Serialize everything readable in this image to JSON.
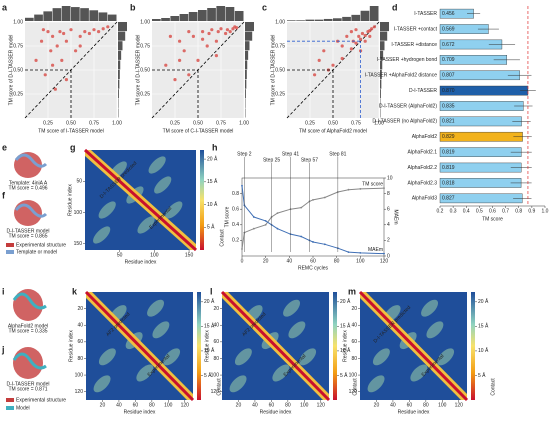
{
  "panel_labels": [
    "a",
    "b",
    "c",
    "d",
    "e",
    "f",
    "g",
    "h",
    "i",
    "j",
    "k",
    "l",
    "m"
  ],
  "structures": {
    "e": [
      "Template: 4iniA A",
      "TM score = 0.496"
    ],
    "f": [
      "D-I-TASSER model",
      "TM score = 0.865"
    ],
    "legend_ef": [
      "Experimental structure",
      "Template or model"
    ],
    "i": [
      "AlphaFold2 model",
      "TM score = 0.335"
    ],
    "j": [
      "D-I-TASSER model",
      "TM score = 0.871"
    ],
    "legend_ij": [
      "Experimental structure",
      "Model"
    ]
  },
  "chart_data": [
    {
      "type": "scatter",
      "xlabel": "TM score of I-TASSER model",
      "ylabel": "TM score of D-I-TASSER model",
      "color": "#d9534f",
      "x": [
        0.12,
        0.18,
        0.22,
        0.25,
        0.28,
        0.3,
        0.33,
        0.35,
        0.38,
        0.4,
        0.42,
        0.45,
        0.5,
        0.55,
        0.6,
        0.65,
        0.7,
        0.75,
        0.8,
        0.85,
        0.9,
        0.3,
        0.2,
        0.45,
        0.6
      ],
      "y": [
        0.6,
        0.8,
        0.45,
        0.9,
        0.7,
        0.85,
        0.3,
        0.75,
        0.9,
        0.6,
        0.88,
        0.8,
        0.92,
        0.7,
        0.85,
        0.9,
        0.88,
        0.92,
        0.9,
        0.93,
        0.95,
        0.55,
        0.92,
        0.4,
        0.75
      ],
      "x_hist": [
        3,
        6,
        9,
        12,
        14,
        13,
        12,
        10,
        8,
        6
      ],
      "y_hist": [
        1,
        1,
        2,
        3,
        4,
        5,
        7,
        10,
        16,
        20
      ],
      "xlim": [
        0,
        1
      ],
      "ylim": [
        0,
        1
      ],
      "xticks": [
        0.25,
        {
          "value": 0.5,
          "label": "0.50"
        },
        0.75,
        {
          "value": 1,
          "label": "1.00"
        }
      ],
      "yticks": [
        0.25,
        {
          "value": 0.5,
          "label": "0.50"
        },
        0.75,
        {
          "value": 1,
          "label": "1.00"
        }
      ],
      "cutoff": 0.5
    },
    {
      "type": "scatter",
      "xlabel": "TM score of C-I-TASSER model",
      "ylabel": "TM score of D-I-TASSER model",
      "color": "#d9534f",
      "x": [
        0.15,
        0.2,
        0.25,
        0.3,
        0.35,
        0.4,
        0.45,
        0.5,
        0.55,
        0.6,
        0.62,
        0.65,
        0.7,
        0.72,
        0.75,
        0.8,
        0.82,
        0.85,
        0.88,
        0.9,
        0.92,
        0.4,
        0.3,
        0.55,
        0.7
      ],
      "y": [
        0.55,
        0.85,
        0.4,
        0.8,
        0.7,
        0.9,
        0.85,
        0.6,
        0.9,
        0.75,
        0.88,
        0.92,
        0.8,
        0.9,
        0.93,
        0.88,
        0.92,
        0.9,
        0.93,
        0.95,
        0.94,
        0.45,
        0.6,
        0.82,
        0.65
      ],
      "x_hist": [
        2,
        3,
        5,
        7,
        9,
        11,
        13,
        15,
        14,
        10
      ],
      "y_hist": [
        1,
        1,
        2,
        3,
        4,
        5,
        7,
        10,
        16,
        20
      ],
      "xlim": [
        0,
        1
      ],
      "ylim": [
        0,
        1
      ],
      "xticks": [
        0.25,
        {
          "value": 0.5,
          "label": "0.50"
        },
        0.75,
        {
          "value": 1,
          "label": "1.00"
        }
      ],
      "yticks": [
        0.25,
        {
          "value": 0.5,
          "label": "0.50"
        },
        0.75,
        {
          "value": 1,
          "label": "1.00"
        }
      ],
      "cutoff": 0.5
    },
    {
      "type": "scatter",
      "xlabel": "TM score of AlphaFold2 model",
      "ylabel": "TM score of D-I-TASSER model",
      "color": "#d9534f",
      "x": [
        0.3,
        0.4,
        0.5,
        0.55,
        0.6,
        0.65,
        0.7,
        0.72,
        0.75,
        0.78,
        0.8,
        0.82,
        0.85,
        0.88,
        0.9,
        0.92,
        0.95,
        0.6,
        0.7,
        0.8,
        0.45,
        0.35,
        0.9,
        0.75,
        0.85
      ],
      "y": [
        0.45,
        0.7,
        0.55,
        0.8,
        0.62,
        0.85,
        0.72,
        0.8,
        0.78,
        0.85,
        0.82,
        0.88,
        0.86,
        0.9,
        0.91,
        0.93,
        0.95,
        0.75,
        0.9,
        0.7,
        0.5,
        0.6,
        0.85,
        0.92,
        0.8
      ],
      "x_hist": [
        1,
        1,
        2,
        2,
        3,
        4,
        6,
        9,
        15,
        22
      ],
      "y_hist": [
        1,
        1,
        2,
        3,
        4,
        5,
        7,
        10,
        16,
        20
      ],
      "xlim": [
        0,
        1
      ],
      "ylim": [
        0,
        1
      ],
      "xticks": [
        0.25,
        {
          "value": 0.5,
          "label": "0.50"
        },
        0.75,
        {
          "value": 1,
          "label": "1.00"
        }
      ],
      "yticks": [
        0.25,
        {
          "value": 0.5,
          "label": "0.50"
        },
        0.75,
        {
          "value": 1,
          "label": "1.00"
        }
      ],
      "cutoff": 0.5,
      "cutoff2": 0.8,
      "cutoff2_color": "#2f5fd0"
    },
    {
      "type": "barh",
      "xlabel": "TM score",
      "categories": [
        "I-TASSER",
        "I-TASSER +contact",
        "I-TASSER +distance",
        "I-TASSER +hydrogen bond",
        "I-TASSER +AlphaFold2 distance",
        "D-I-TASSER",
        "D-I-TASSER (AlphaFold2)",
        "D-I-TASSER (no AlphaFold2)",
        "AlphaFold2",
        "AlphaFold2.1",
        "AlphaFold2.2",
        "AlphaFold2.3",
        "AlphaFold3"
      ],
      "values": [
        0.456,
        0.569,
        0.672,
        0.709,
        0.807,
        0.87,
        0.835,
        0.821,
        0.829,
        0.819,
        0.819,
        0.818,
        0.827
      ],
      "value_labels": [
        "0.456",
        "0.569",
        "0.672",
        "0.709",
        "0.807",
        "0.870",
        "0.835",
        "0.821",
        "0.829",
        "0.819",
        "0.819",
        "0.818",
        "0.827"
      ],
      "errors": [
        0.05,
        0.08,
        0.1,
        0.1,
        0.09,
        0.06,
        0.07,
        0.07,
        0.07,
        0.08,
        0.08,
        0.08,
        0.07
      ],
      "colors": [
        "#8fd0ef",
        "#8fd0ef",
        "#8fd0ef",
        "#8fd0ef",
        "#8fd0ef",
        "#1f5fa8",
        "#8fd0ef",
        "#8fd0ef",
        "#f2b21c",
        "#8fd0ef",
        "#8fd0ef",
        "#8fd0ef",
        "#8fd0ef"
      ],
      "xlim": [
        0.2,
        1
      ],
      "xticks": [
        0.2,
        0.3,
        0.4,
        0.5,
        0.6,
        0.7,
        0.8,
        0.9,
        {
          "value": 1,
          "label": "1.0"
        }
      ],
      "ref_line": 0.87,
      "ref_color": "#e03030"
    },
    {
      "type": "heatmap",
      "xlabel": "Residue index",
      "ylabel": "Residue index",
      "xlim": [
        0,
        160
      ],
      "xticks": [
        50,
        100,
        150
      ],
      "yticks": [
        50,
        100,
        150
      ],
      "annotations": [
        "D-I-TASSER predicted",
        "Experimental"
      ],
      "cticks": [
        {
          "value": 5,
          "label": "5 Å"
        },
        {
          "value": 10,
          "label": "10 Å"
        },
        {
          "value": 15,
          "label": "15 Å"
        },
        {
          "value": 20,
          "label": "20 Å"
        }
      ],
      "clim": [
        0,
        22
      ],
      "clabel": "Contact"
    },
    {
      "type": "line",
      "xlabel": "REMC cycles",
      "ylabel": "TM score",
      "y2label": "MAEm",
      "x": [
        0,
        2,
        10,
        20,
        25,
        30,
        41,
        50,
        57,
        60,
        70,
        81,
        90,
        100,
        120
      ],
      "series": [
        {
          "name": "TM score",
          "color": "#888888",
          "values": [
            0.09,
            0.3,
            0.35,
            0.4,
            0.5,
            0.55,
            0.6,
            0.62,
            0.7,
            0.72,
            0.75,
            0.82,
            0.85,
            0.86,
            0.87
          ]
        },
        {
          "name": "MAEm",
          "color": "#3f6fb5",
          "axis": "y2",
          "values": [
            9,
            6.5,
            5,
            4.5,
            4,
            3.5,
            2.8,
            2.5,
            2,
            1.8,
            1.5,
            1,
            0.5,
            0.4,
            0.3
          ]
        }
      ],
      "steps": [
        {
          "label": "Step 2",
          "x": 2
        },
        {
          "label": "Step 25",
          "x": 25
        },
        {
          "label": "Step 41",
          "x": 41
        },
        {
          "label": "Step 57",
          "x": 57
        },
        {
          "label": "Step 81",
          "x": 81
        }
      ],
      "xlim": [
        0,
        120
      ],
      "xticks": [
        0,
        20,
        40,
        60,
        80,
        100,
        120
      ],
      "ylim": [
        0,
        1
      ],
      "yticks": [
        0.2,
        0.4,
        0.6,
        0.8
      ],
      "y2lim": [
        0,
        10
      ],
      "y2ticks": [
        0,
        2,
        4,
        6,
        8,
        10
      ]
    },
    {
      "type": "heatmap",
      "xlabel": "Residue index",
      "ylabel": "Residue index",
      "xlim": [
        0,
        130
      ],
      "xticks": [
        20,
        40,
        60,
        80,
        100,
        120
      ],
      "yticks": [
        20,
        40,
        60,
        80,
        100,
        120
      ],
      "annotations": [
        "AF2 predicted",
        "Experimental"
      ],
      "cticks": [
        {
          "value": 5,
          "label": "5 Å"
        },
        {
          "value": 10,
          "label": "10 Å"
        },
        {
          "value": 15,
          "label": "15 Å"
        },
        {
          "value": 20,
          "label": "20 Å"
        }
      ],
      "clim": [
        0,
        22
      ],
      "clabel": "Contact"
    },
    {
      "type": "heatmap",
      "xlabel": "Residue index",
      "ylabel": "Residue index",
      "xlim": [
        0,
        130
      ],
      "xticks": [
        20,
        40,
        60,
        80,
        100,
        120
      ],
      "yticks": [
        20,
        40,
        60,
        80,
        100,
        120
      ],
      "annotations": [
        "AF2 predicted",
        "Experimental"
      ],
      "cticks": [
        {
          "value": 5,
          "label": "5 Å"
        },
        {
          "value": 10,
          "label": "10 Å"
        },
        {
          "value": 15,
          "label": "15 Å"
        },
        {
          "value": 20,
          "label": "20 Å"
        }
      ],
      "clim": [
        0,
        22
      ],
      "clabel": "Contact"
    },
    {
      "type": "heatmap",
      "xlabel": "Residue index",
      "ylabel": "Residue index",
      "xlim": [
        0,
        130
      ],
      "xticks": [
        20,
        40,
        60,
        80,
        100,
        120
      ],
      "yticks": [
        20,
        40,
        60,
        80,
        100,
        120
      ],
      "annotations": [
        "D-I-TASSER predicted",
        "Experimental"
      ],
      "cticks": [
        {
          "value": 5,
          "label": "5 Å"
        },
        {
          "value": 10,
          "label": "10 Å"
        },
        {
          "value": 15,
          "label": "15 Å"
        },
        {
          "value": 20,
          "label": "20 Å"
        }
      ],
      "clim": [
        0,
        22
      ],
      "clabel": "Contact"
    }
  ]
}
